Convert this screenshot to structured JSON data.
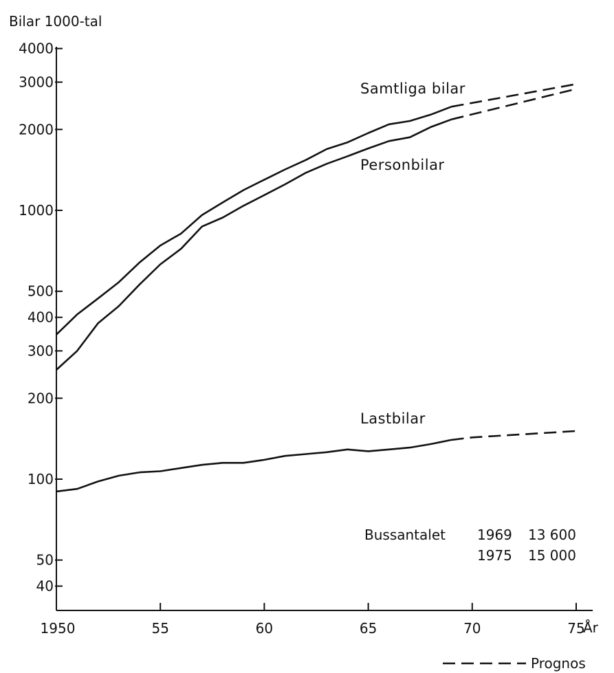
{
  "chart_data": {
    "type": "line",
    "ylabel": "Bilar 1000-tal",
    "xlabel": "År",
    "y_scale": "log",
    "ylim": [
      30,
      4000
    ],
    "xlim": [
      1950,
      1975
    ],
    "y_ticks": [
      {
        "value": 4000,
        "label": "4000"
      },
      {
        "value": 3000,
        "label": "3000"
      },
      {
        "value": 2000,
        "label": "2000"
      },
      {
        "value": 1000,
        "label": "1000"
      },
      {
        "value": 500,
        "label": "500"
      },
      {
        "value": 400,
        "label": "400"
      },
      {
        "value": 300,
        "label": "300"
      },
      {
        "value": 200,
        "label": "200"
      },
      {
        "value": 100,
        "label": "100"
      },
      {
        "value": 50,
        "label": "50"
      },
      {
        "value": 40,
        "label": "40"
      }
    ],
    "x_ticks": [
      {
        "value": 1950,
        "label": "1950"
      },
      {
        "value": 1955,
        "label": "55"
      },
      {
        "value": 1960,
        "label": "60"
      },
      {
        "value": 1965,
        "label": "65"
      },
      {
        "value": 1970,
        "label": "70"
      },
      {
        "value": 1975,
        "label": "75"
      }
    ],
    "series": [
      {
        "name": "Samtliga bilar",
        "x": [
          1950,
          1951,
          1952,
          1953,
          1954,
          1955,
          1956,
          1957,
          1958,
          1959,
          1960,
          1961,
          1962,
          1963,
          1964,
          1965,
          1966,
          1967,
          1968,
          1969
        ],
        "values": [
          345,
          410,
          470,
          540,
          640,
          740,
          820,
          960,
          1070,
          1190,
          1300,
          1420,
          1540,
          1690,
          1790,
          1940,
          2090,
          2150,
          2270,
          2430
        ],
        "forecast": {
          "x": [
            1969,
            1975
          ],
          "values": [
            2430,
            2950
          ]
        }
      },
      {
        "name": "Personbilar",
        "x": [
          1950,
          1951,
          1952,
          1953,
          1954,
          1955,
          1956,
          1957,
          1958,
          1959,
          1960,
          1961,
          1962,
          1963,
          1964,
          1965,
          1966,
          1967,
          1968,
          1969
        ],
        "values": [
          255,
          300,
          380,
          440,
          530,
          630,
          720,
          870,
          940,
          1040,
          1140,
          1250,
          1380,
          1490,
          1590,
          1700,
          1810,
          1870,
          2040,
          2180
        ],
        "forecast": {
          "x": [
            1969,
            1975
          ],
          "values": [
            2180,
            2830
          ]
        }
      },
      {
        "name": "Lastbilar",
        "x": [
          1950,
          1951,
          1952,
          1953,
          1954,
          1955,
          1956,
          1957,
          1958,
          1959,
          1960,
          1961,
          1962,
          1963,
          1964,
          1965,
          1966,
          1967,
          1968,
          1969
        ],
        "values": [
          90,
          92,
          98,
          103,
          106,
          107,
          110,
          113,
          115,
          115,
          118,
          122,
          124,
          126,
          129,
          127,
          129,
          131,
          135,
          140
        ],
        "forecast": {
          "x": [
            1969,
            1970,
            1975
          ],
          "values": [
            140,
            143,
            151
          ]
        }
      }
    ],
    "annotations": {
      "bus_label": "Bussantalet",
      "bus_rows": [
        {
          "year": "1969",
          "value": "13 600"
        },
        {
          "year": "1975",
          "value": "15 000"
        }
      ]
    },
    "legend": {
      "dashed": "Prognos",
      "position": "bottom-right"
    },
    "grid": false
  }
}
